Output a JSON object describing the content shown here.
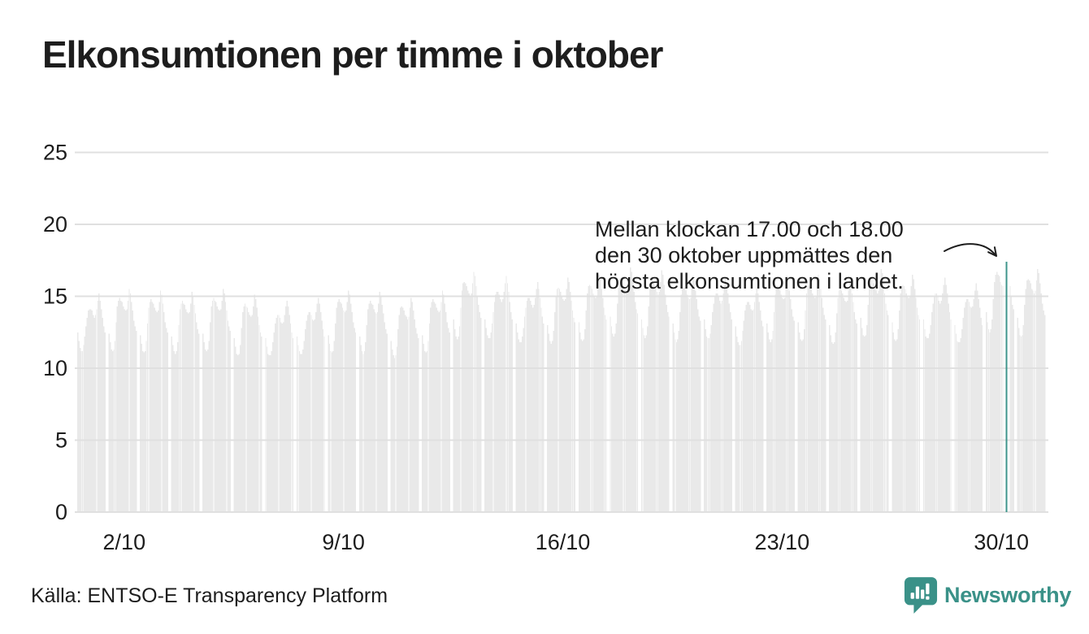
{
  "title": "Elkonsumtionen per timme i oktober",
  "annotation": {
    "lines": [
      "Mellan klockan 17.00 och 18.00",
      "den 30 oktober uppmättes den",
      "högsta elkonsumtionen i landet."
    ]
  },
  "source": "Källa: ENTSO-E Transparency Platform",
  "brand": {
    "name": "Newsworthy",
    "color": "#3A9188",
    "icon": "newsworthy-speech-bubble-bar-chart-icon"
  },
  "chart_data": {
    "type": "bar",
    "title": "Elkonsumtionen per timme i oktober",
    "xlabel": "",
    "ylabel": "",
    "x_axis": {
      "tick_labels": [
        "2/10",
        "9/10",
        "16/10",
        "23/10",
        "30/10"
      ],
      "tick_days": [
        2,
        9,
        16,
        23,
        30
      ],
      "days": 31,
      "hours_per_day": 24
    },
    "y_axis": {
      "ticks": [
        0,
        5,
        10,
        15,
        20,
        25
      ],
      "range": [
        0,
        26.5
      ]
    },
    "grid": true,
    "bar_color": "#E9E9E9",
    "grid_color": "#E0E0E0",
    "text_color": "#1D1D1D",
    "highlight": {
      "day": 30,
      "hour_start": 17,
      "hour_end": 18,
      "value": 17.4,
      "color": "#3E958B"
    },
    "hourly_by_day": [
      [
        12.5,
        11.9,
        11.4,
        11.2,
        11.2,
        11.6,
        12.2,
        12.9,
        13.5,
        14.0,
        14.1,
        14.1,
        14.0,
        13.7,
        13.5,
        13.7,
        14.1,
        14.7,
        15.2,
        14.7,
        14.1,
        13.5,
        12.9,
        12.5
      ],
      [
        12.4,
        11.8,
        11.3,
        11.2,
        11.3,
        11.9,
        13.2,
        14.3,
        14.7,
        14.9,
        14.7,
        14.6,
        14.3,
        14.1,
        14.0,
        14.1,
        14.7,
        15.5,
        15.2,
        14.6,
        14.0,
        13.3,
        12.9,
        12.6
      ],
      [
        12.3,
        11.7,
        11.2,
        11.1,
        11.2,
        11.9,
        13.1,
        14.2,
        14.6,
        14.8,
        14.6,
        14.5,
        14.2,
        14.0,
        13.9,
        14.0,
        14.6,
        15.4,
        15.1,
        14.5,
        13.9,
        13.2,
        12.8,
        12.5
      ],
      [
        12.2,
        11.6,
        11.2,
        11.0,
        11.2,
        11.8,
        13.0,
        14.1,
        14.5,
        14.7,
        14.5,
        14.4,
        14.1,
        13.9,
        13.8,
        13.9,
        14.5,
        15.3,
        15.0,
        14.4,
        13.8,
        13.2,
        12.7,
        12.4
      ],
      [
        12.4,
        11.8,
        11.3,
        11.2,
        11.3,
        11.9,
        13.2,
        14.3,
        14.7,
        14.9,
        14.7,
        14.6,
        14.3,
        14.1,
        14.0,
        14.1,
        14.7,
        15.5,
        15.2,
        14.6,
        14.0,
        13.3,
        12.9,
        12.6
      ],
      [
        12.1,
        11.5,
        11.0,
        10.9,
        11.0,
        11.6,
        12.8,
        13.9,
        14.3,
        14.5,
        14.3,
        14.2,
        13.9,
        13.7,
        13.6,
        13.7,
        14.3,
        15.1,
        14.8,
        14.2,
        13.6,
        13.0,
        12.5,
        12.2
      ],
      [
        12.1,
        11.5,
        11.0,
        10.9,
        10.9,
        11.2,
        11.8,
        12.5,
        13.1,
        13.5,
        13.7,
        13.7,
        13.5,
        13.2,
        13.1,
        13.2,
        13.7,
        14.3,
        14.7,
        14.3,
        13.7,
        13.1,
        12.5,
        12.1
      ],
      [
        12.2,
        11.6,
        11.2,
        11.0,
        11.0,
        11.3,
        11.9,
        12.7,
        13.3,
        13.7,
        13.9,
        13.9,
        13.7,
        13.4,
        13.3,
        13.4,
        13.9,
        14.5,
        14.9,
        14.5,
        13.9,
        13.3,
        12.7,
        12.2
      ],
      [
        12.3,
        11.7,
        11.2,
        11.1,
        11.2,
        11.9,
        13.1,
        14.2,
        14.6,
        14.8,
        14.6,
        14.5,
        14.2,
        14.0,
        13.9,
        14.0,
        14.6,
        15.4,
        15.1,
        14.5,
        13.9,
        13.2,
        12.8,
        12.5
      ],
      [
        12.2,
        11.6,
        11.2,
        11.0,
        11.2,
        11.8,
        13.0,
        14.1,
        14.5,
        14.7,
        14.5,
        14.4,
        14.1,
        13.9,
        13.8,
        13.9,
        14.5,
        15.3,
        15.0,
        14.4,
        13.8,
        13.2,
        12.7,
        12.4
      ],
      [
        11.9,
        11.3,
        10.9,
        10.7,
        10.9,
        11.5,
        12.7,
        13.7,
        14.2,
        14.3,
        14.2,
        14.0,
        13.7,
        13.6,
        13.4,
        13.6,
        14.2,
        14.9,
        14.6,
        14.0,
        13.4,
        12.8,
        12.4,
        12.1
      ],
      [
        12.3,
        11.7,
        11.2,
        11.1,
        11.2,
        11.9,
        13.1,
        14.2,
        14.6,
        14.8,
        14.6,
        14.5,
        14.2,
        14.0,
        13.9,
        14.0,
        14.6,
        15.4,
        15.1,
        14.5,
        13.9,
        13.2,
        12.8,
        12.5
      ],
      [
        13.4,
        12.7,
        12.2,
        12.0,
        12.2,
        12.9,
        14.2,
        15.4,
        15.9,
        16.0,
        15.9,
        15.7,
        15.4,
        15.2,
        15.0,
        15.2,
        15.9,
        16.7,
        16.4,
        15.7,
        15.0,
        14.4,
        13.9,
        13.5
      ],
      [
        13.4,
        12.8,
        12.3,
        12.1,
        12.1,
        12.5,
        13.1,
        13.9,
        14.6,
        15.1,
        15.3,
        15.3,
        15.1,
        14.8,
        14.6,
        14.8,
        15.3,
        15.9,
        16.4,
        15.9,
        15.3,
        14.6,
        13.9,
        13.4
      ],
      [
        13.1,
        12.5,
        12.0,
        11.8,
        11.8,
        12.2,
        12.8,
        13.6,
        14.2,
        14.7,
        14.9,
        14.9,
        14.7,
        14.4,
        14.2,
        14.4,
        14.9,
        15.5,
        16.0,
        15.5,
        14.9,
        14.2,
        13.6,
        13.1
      ],
      [
        13.0,
        12.4,
        11.9,
        11.7,
        11.9,
        12.6,
        13.9,
        15.0,
        15.5,
        15.6,
        15.5,
        15.3,
        15.0,
        14.8,
        14.7,
        14.8,
        15.5,
        16.3,
        16.0,
        15.3,
        14.7,
        14.0,
        13.5,
        13.2
      ],
      [
        13.2,
        12.5,
        12.0,
        11.9,
        12.0,
        12.7,
        14.0,
        15.2,
        15.7,
        15.8,
        15.7,
        15.5,
        15.2,
        15.0,
        14.9,
        15.0,
        15.7,
        16.5,
        16.2,
        15.5,
        14.9,
        14.2,
        13.7,
        13.4
      ],
      [
        13.6,
        12.9,
        12.4,
        12.2,
        12.4,
        13.1,
        14.5,
        15.6,
        16.2,
        16.3,
        16.2,
        16.0,
        15.6,
        15.5,
        15.3,
        15.5,
        16.2,
        17.0,
        16.7,
        16.0,
        15.3,
        14.6,
        14.1,
        13.8
      ],
      [
        13.4,
        12.8,
        12.3,
        12.1,
        12.3,
        12.9,
        14.3,
        15.5,
        16.0,
        16.1,
        16.0,
        15.8,
        15.5,
        15.3,
        15.1,
        15.3,
        16.0,
        16.8,
        16.5,
        15.8,
        15.1,
        14.4,
        13.9,
        13.6
      ],
      [
        13.1,
        12.5,
        12.0,
        11.8,
        12.0,
        12.6,
        13.9,
        15.1,
        15.6,
        15.7,
        15.6,
        15.4,
        15.1,
        14.9,
        14.8,
        14.9,
        15.6,
        16.4,
        16.1,
        15.4,
        14.8,
        14.1,
        13.6,
        13.3
      ],
      [
        13.4,
        12.7,
        12.2,
        12.1,
        12.1,
        12.4,
        13.0,
        13.9,
        14.5,
        15.0,
        15.2,
        15.2,
        15.0,
        14.7,
        14.5,
        14.7,
        15.2,
        15.8,
        16.3,
        15.8,
        15.2,
        14.5,
        13.9,
        13.4
      ],
      [
        12.9,
        12.2,
        11.8,
        11.6,
        11.6,
        11.9,
        12.6,
        13.3,
        14.0,
        14.4,
        14.6,
        14.6,
        14.4,
        14.1,
        14.0,
        14.1,
        14.6,
        15.2,
        15.7,
        15.2,
        14.6,
        14.0,
        13.3,
        12.9
      ],
      [
        13.1,
        12.5,
        12.0,
        11.8,
        12.0,
        12.6,
        13.9,
        15.1,
        15.6,
        15.7,
        15.6,
        15.4,
        15.1,
        14.9,
        14.8,
        14.9,
        15.6,
        16.4,
        16.1,
        15.4,
        14.8,
        14.1,
        13.6,
        13.3
      ],
      [
        13.2,
        12.5,
        12.0,
        11.9,
        12.0,
        12.7,
        14.0,
        15.2,
        15.7,
        15.8,
        15.7,
        15.5,
        15.2,
        15.0,
        14.9,
        15.0,
        15.7,
        16.5,
        16.2,
        15.5,
        14.9,
        14.2,
        13.7,
        13.4
      ],
      [
        13.0,
        12.3,
        11.8,
        11.7,
        11.8,
        12.5,
        13.8,
        14.9,
        15.4,
        15.6,
        15.4,
        15.2,
        14.9,
        14.7,
        14.6,
        14.7,
        15.4,
        16.2,
        15.9,
        15.2,
        14.6,
        13.9,
        13.4,
        13.1
      ],
      [
        13.5,
        12.8,
        12.3,
        12.2,
        12.3,
        13.0,
        14.4,
        15.5,
        16.1,
        16.2,
        16.1,
        15.9,
        15.5,
        15.4,
        15.2,
        15.4,
        16.1,
        16.9,
        16.6,
        15.9,
        15.2,
        14.5,
        14.0,
        13.7
      ],
      [
        13.2,
        12.5,
        12.0,
        11.9,
        12.0,
        12.7,
        14.0,
        15.2,
        15.7,
        15.8,
        15.7,
        15.5,
        15.2,
        15.0,
        14.9,
        15.0,
        15.7,
        16.5,
        16.2,
        15.5,
        14.9,
        14.2,
        13.7,
        13.4
      ],
      [
        13.4,
        12.7,
        12.2,
        12.1,
        12.1,
        12.4,
        13.0,
        13.9,
        14.5,
        15.0,
        15.2,
        15.2,
        15.0,
        14.7,
        14.5,
        14.7,
        15.2,
        15.8,
        16.3,
        15.8,
        15.2,
        14.5,
        13.9,
        13.4
      ],
      [
        13.0,
        12.4,
        11.9,
        11.8,
        11.8,
        12.1,
        12.7,
        13.5,
        14.2,
        14.6,
        14.8,
        14.8,
        14.6,
        14.3,
        14.2,
        14.3,
        14.8,
        15.4,
        15.9,
        15.4,
        14.8,
        14.2,
        13.5,
        13.0
      ],
      [
        13.9,
        13.2,
        12.7,
        12.5,
        12.7,
        13.4,
        14.8,
        16.0,
        16.5,
        16.7,
        16.5,
        16.4,
        16.0,
        15.8,
        15.7,
        15.8,
        16.5,
        17.4,
        17.1,
        16.4,
        15.7,
        15.0,
        14.4,
        14.1
      ],
      [
        13.5,
        12.8,
        12.3,
        12.2,
        12.3,
        13.0,
        14.4,
        15.5,
        16.1,
        16.2,
        16.1,
        15.9,
        15.5,
        15.4,
        15.2,
        15.4,
        16.1,
        16.9,
        16.6,
        15.9,
        15.2,
        14.5,
        14.0,
        13.7
      ]
    ]
  }
}
